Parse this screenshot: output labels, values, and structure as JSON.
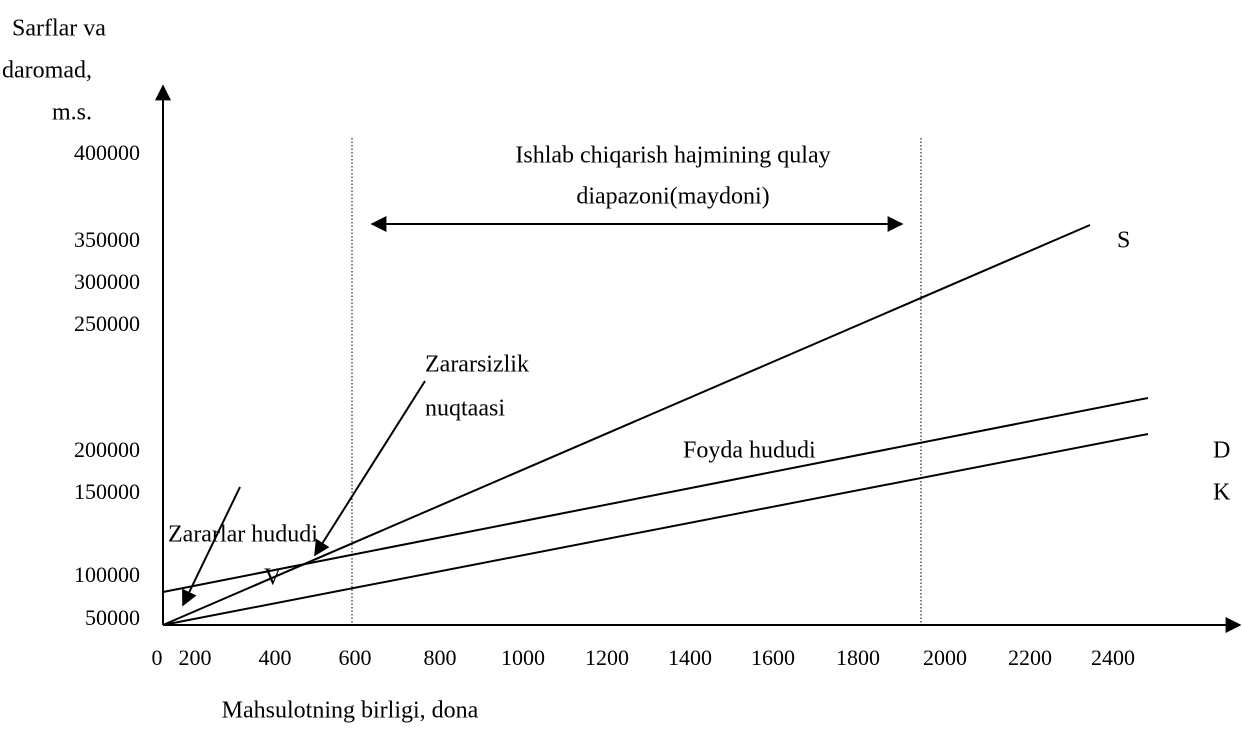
{
  "y_axis": {
    "label": [
      "Sarflar va",
      "daromad,",
      "m.s."
    ],
    "ticks": [
      "400000",
      "350000",
      "300000",
      "250000",
      "200000",
      "150000",
      "100000",
      "50000"
    ]
  },
  "x_axis": {
    "label": "Mahsulotning birligi, dona",
    "ticks": [
      "0",
      "200",
      "400",
      "600",
      "800",
      "1000",
      "1200",
      "1400",
      "1600",
      "1800",
      "2000",
      "2200",
      "2400"
    ]
  },
  "annotations": {
    "range": [
      "Ishlab chiqarish hajmining qulay",
      "diapazoni(maydoni)"
    ],
    "breakeven": [
      "Zararsizlik",
      "nuqtaasi"
    ],
    "profit": "Foyda hududi",
    "loss": "Zararlar hududi"
  },
  "lines": {
    "S": "S",
    "D": "D",
    "K": "K",
    "V": "V"
  }
}
